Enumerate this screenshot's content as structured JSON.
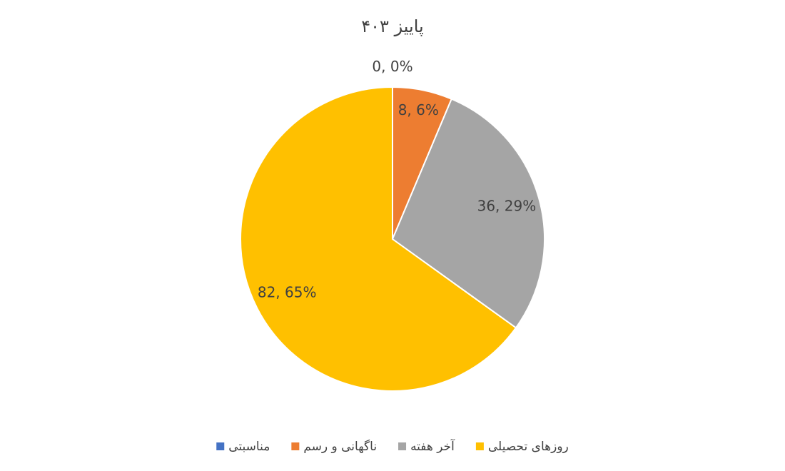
{
  "chart_data": {
    "type": "pie",
    "title": "پاییز ۴۰۳",
    "categories": [
      "مناسبتی",
      "ناگهانی و رسم",
      "آخر هفته",
      "روزهای تحصیلی"
    ],
    "values": [
      0,
      8,
      36,
      82
    ],
    "value_labels": [
      "0, 0%",
      "8, 6%",
      "36, 29%",
      "82, 65%"
    ],
    "colors": [
      "#4472c4",
      "#ed7d31",
      "#a5a5a5",
      "#ffc000"
    ],
    "legend": "bottom"
  }
}
